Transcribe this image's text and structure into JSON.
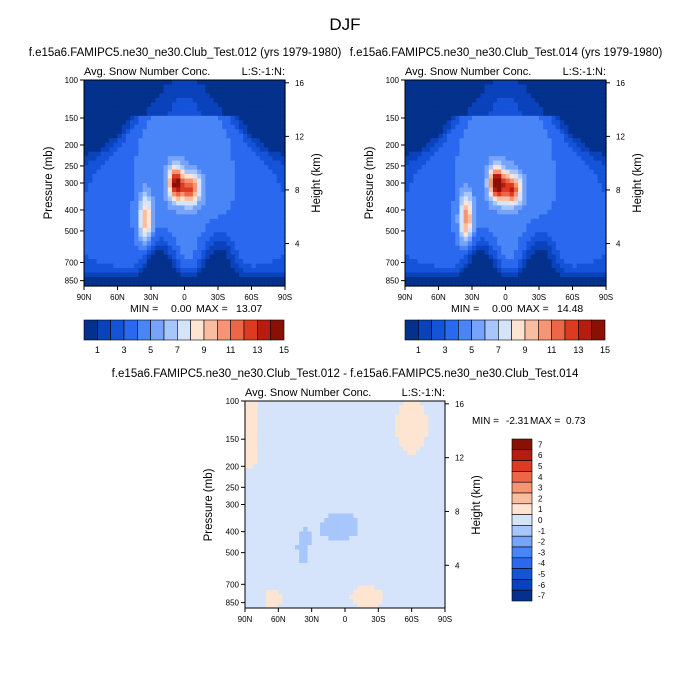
{
  "chart_data": {
    "figure_title": "DJF",
    "colors": {
      "cb15": [
        "#03318c",
        "#0a42bb",
        "#1553d9",
        "#2a68ef",
        "#4a85f7",
        "#76a4fa",
        "#a7c6fb",
        "#d5e4fb",
        "#fde5d2",
        "#f9bea0",
        "#f59573",
        "#ee6648",
        "#dc3b22",
        "#b81c10",
        "#8a1006"
      ],
      "cbdiff": [
        "#03318c",
        "#0a42bb",
        "#1553d9",
        "#2a68ef",
        "#4a85f7",
        "#76a4fa",
        "#a7c6fb",
        "#d5e4fb",
        "#fde5d2",
        "#f9bea0",
        "#f59573",
        "#ee6648",
        "#dc3b22",
        "#b81c10",
        "#8a1006"
      ]
    },
    "y_ticks": [
      "100",
      "150",
      "200",
      "250",
      "300",
      "400",
      "500",
      "700",
      "850"
    ],
    "y_tick_values": [
      100,
      150,
      200,
      250,
      300,
      400,
      500,
      700,
      850
    ],
    "x_ticks": [
      "90N",
      "60N",
      "30N",
      "0",
      "30S",
      "60S",
      "90S"
    ],
    "x_tick_values": [
      90,
      60,
      30,
      0,
      -30,
      -60,
      -90
    ],
    "height_ticks": [
      "16",
      "12",
      "8",
      "4"
    ],
    "height_tick_values": [
      16,
      12,
      8,
      4
    ],
    "plots": [
      {
        "type": "heatmap",
        "name": "case-012",
        "title": "f.e15a6.FAMIPC5.ne30_ne30.Club_Test.012 (yrs 1979-1980)",
        "left_label": "Avg. Snow Number Conc.",
        "right_label": "L:S:-1:N:",
        "ylabel": "Pressure (mb)",
        "ylabel2": "Height (km)",
        "xlim": [
          90,
          -90
        ],
        "ylim": [
          100,
          900
        ],
        "min_label": "MIN =",
        "min_value": "0.00",
        "max_label": "MAX =",
        "max_value": "13.07",
        "peak": 13.07,
        "colorbar_labels": [
          "1",
          "3",
          "5",
          "7",
          "9",
          "11",
          "13",
          "15"
        ],
        "colorbar_levels": [
          1,
          2,
          3,
          4,
          5,
          6,
          7,
          8,
          9,
          10,
          11,
          12,
          13,
          14
        ],
        "colorbar_label_values": [
          1,
          3,
          5,
          7,
          9,
          11,
          13,
          15
        ]
      },
      {
        "type": "heatmap",
        "name": "case-014",
        "title": "f.e15a6.FAMIPC5.ne30_ne30.Club_Test.014 (yrs 1979-1980)",
        "left_label": "Avg. Snow Number Conc.",
        "right_label": "L:S:-1:N:",
        "ylabel": "Pressure (mb)",
        "ylabel2": "Height (km)",
        "xlim": [
          90,
          -90
        ],
        "ylim": [
          100,
          900
        ],
        "min_label": "MIN =",
        "min_value": "0.00",
        "max_label": "MAX =",
        "max_value": "14.48",
        "peak": 14.48,
        "colorbar_labels": [
          "1",
          "3",
          "5",
          "7",
          "9",
          "11",
          "13",
          "15"
        ],
        "colorbar_levels": [
          1,
          2,
          3,
          4,
          5,
          6,
          7,
          8,
          9,
          10,
          11,
          12,
          13,
          14
        ],
        "colorbar_label_values": [
          1,
          3,
          5,
          7,
          9,
          11,
          13,
          15
        ]
      },
      {
        "type": "heatmap",
        "name": "difference",
        "title": "f.e15a6.FAMIPC5.ne30_ne30.Club_Test.012 - f.e15a6.FAMIPC5.ne30_ne30.Club_Test.014",
        "left_label": "Avg. Snow Number Conc.",
        "right_label": "L:S:-1:N:",
        "ylabel": "Pressure (mb)",
        "ylabel2": "Height (km)",
        "xlim": [
          90,
          -90
        ],
        "ylim": [
          100,
          900
        ],
        "min_label": "MIN =",
        "min_value": "-2.31",
        "max_label": "MAX =",
        "max_value": "0.73",
        "colorbar_labels": [
          "7",
          "6",
          "5",
          "4",
          "3",
          "2",
          "1",
          "0",
          "-1",
          "-2",
          "-3",
          "-4",
          "-5",
          "-6",
          "-7"
        ],
        "colorbar_levels": [
          -7,
          -6,
          -5,
          -4,
          -3,
          -2,
          -1,
          0,
          1,
          2,
          3,
          4,
          5,
          6,
          7
        ]
      }
    ]
  }
}
